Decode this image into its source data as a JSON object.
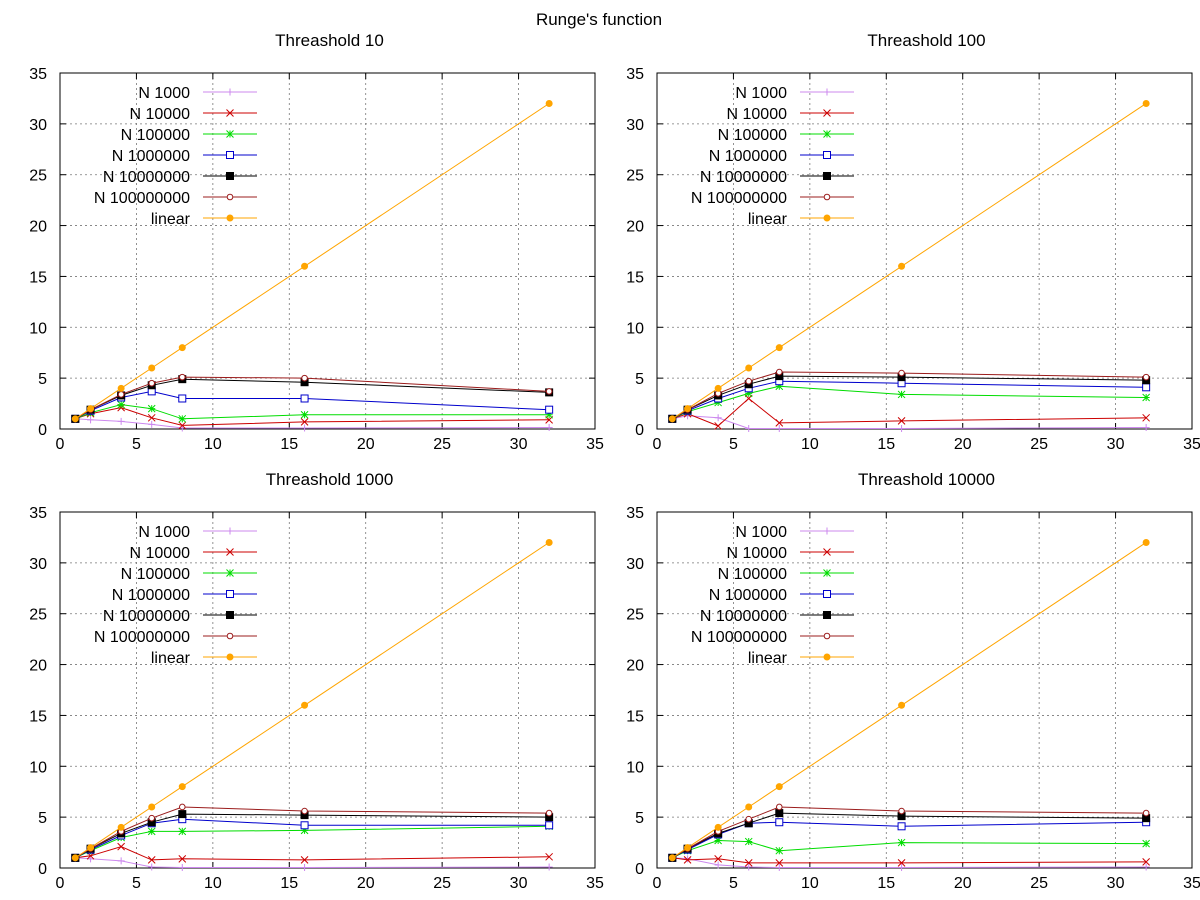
{
  "figure_title": "Runge's function",
  "chart_data": [
    {
      "type": "line",
      "title": "Threashold 10",
      "xlabel": "",
      "ylabel": "",
      "xlim": [
        0,
        35
      ],
      "ylim": [
        0,
        35
      ],
      "xticks": [
        0,
        5,
        10,
        15,
        20,
        25,
        30,
        35
      ],
      "yticks": [
        0,
        5,
        10,
        15,
        20,
        25,
        30,
        35
      ],
      "grid": true,
      "legend_position": "top-left",
      "x": [
        1,
        2,
        4,
        6,
        8,
        16,
        32
      ],
      "series": [
        {
          "name": "N 1000",
          "color": "#cc88ee",
          "marker": "plus",
          "values": [
            1,
            0.9,
            0.75,
            0.45,
            0.1,
            0.1,
            0.15
          ]
        },
        {
          "name": "N 10000",
          "color": "#cc0000",
          "marker": "cross",
          "values": [
            1,
            1.5,
            2.1,
            1.1,
            0.35,
            0.7,
            0.9
          ]
        },
        {
          "name": "N 100000",
          "color": "#00dd00",
          "marker": "star",
          "values": [
            1,
            1.6,
            2.4,
            2.0,
            1.0,
            1.4,
            1.4
          ]
        },
        {
          "name": "N 1000000",
          "color": "#0000cc",
          "marker": "open-square",
          "values": [
            1,
            1.8,
            3.1,
            3.7,
            3.0,
            3.0,
            1.9
          ]
        },
        {
          "name": "N 10000000",
          "color": "#000000",
          "marker": "filled-square",
          "values": [
            1,
            1.9,
            3.3,
            4.3,
            4.9,
            4.6,
            3.6
          ]
        },
        {
          "name": "N 100000000",
          "color": "#9b1c1c",
          "marker": "open-circle",
          "values": [
            1,
            1.9,
            3.4,
            4.5,
            5.1,
            5.0,
            3.7
          ]
        },
        {
          "name": "linear",
          "color": "#ffa500",
          "marker": "filled-circle",
          "values": [
            1,
            2,
            4,
            6,
            8,
            16,
            32
          ]
        }
      ]
    },
    {
      "type": "line",
      "title": "Threashold 100",
      "xlabel": "",
      "ylabel": "",
      "xlim": [
        0,
        35
      ],
      "ylim": [
        0,
        35
      ],
      "xticks": [
        0,
        5,
        10,
        15,
        20,
        25,
        30,
        35
      ],
      "yticks": [
        0,
        5,
        10,
        15,
        20,
        25,
        30,
        35
      ],
      "grid": true,
      "legend_position": "top-left",
      "x": [
        1,
        2,
        4,
        6,
        8,
        16,
        32
      ],
      "series": [
        {
          "name": "N 1000",
          "color": "#cc88ee",
          "marker": "plus",
          "values": [
            1,
            1.3,
            1.1,
            0.05,
            0.05,
            0.05,
            0.15
          ]
        },
        {
          "name": "N 10000",
          "color": "#cc0000",
          "marker": "cross",
          "values": [
            1,
            1.5,
            0.3,
            3.0,
            0.6,
            0.8,
            1.1
          ]
        },
        {
          "name": "N 100000",
          "color": "#00dd00",
          "marker": "star",
          "values": [
            1,
            1.7,
            2.6,
            3.5,
            4.2,
            3.4,
            3.1
          ]
        },
        {
          "name": "N 1000000",
          "color": "#0000cc",
          "marker": "open-square",
          "values": [
            1,
            1.8,
            3.0,
            4.0,
            4.7,
            4.5,
            4.1
          ]
        },
        {
          "name": "N 10000000",
          "color": "#000000",
          "marker": "filled-square",
          "values": [
            1,
            1.9,
            3.3,
            4.4,
            5.2,
            5.1,
            4.8
          ]
        },
        {
          "name": "N 100000000",
          "color": "#9b1c1c",
          "marker": "open-circle",
          "values": [
            1,
            1.9,
            3.5,
            4.7,
            5.6,
            5.5,
            5.1
          ]
        },
        {
          "name": "linear",
          "color": "#ffa500",
          "marker": "filled-circle",
          "values": [
            1,
            2,
            4,
            6,
            8,
            16,
            32
          ]
        }
      ]
    },
    {
      "type": "line",
      "title": "Threashold 1000",
      "xlabel": "",
      "ylabel": "",
      "xlim": [
        0,
        35
      ],
      "ylim": [
        0,
        35
      ],
      "xticks": [
        0,
        5,
        10,
        15,
        20,
        25,
        30,
        35
      ],
      "yticks": [
        0,
        5,
        10,
        15,
        20,
        25,
        30,
        35
      ],
      "grid": true,
      "legend_position": "top-left",
      "x": [
        1,
        2,
        4,
        6,
        8,
        16,
        32
      ],
      "series": [
        {
          "name": "N 1000",
          "color": "#cc88ee",
          "marker": "plus",
          "values": [
            1,
            0.9,
            0.7,
            0.1,
            0.05,
            0.05,
            0.1
          ]
        },
        {
          "name": "N 10000",
          "color": "#cc0000",
          "marker": "cross",
          "values": [
            1,
            1.2,
            2.1,
            0.8,
            0.9,
            0.8,
            1.1
          ]
        },
        {
          "name": "N 100000",
          "color": "#00dd00",
          "marker": "star",
          "values": [
            1,
            1.7,
            3.0,
            3.6,
            3.6,
            3.7,
            4.1
          ]
        },
        {
          "name": "N 1000000",
          "color": "#0000cc",
          "marker": "open-square",
          "values": [
            1,
            1.8,
            3.2,
            4.4,
            4.8,
            4.2,
            4.2
          ]
        },
        {
          "name": "N 10000000",
          "color": "#000000",
          "marker": "filled-square",
          "values": [
            1,
            1.9,
            3.4,
            4.5,
            5.3,
            5.2,
            5.0
          ]
        },
        {
          "name": "N 100000000",
          "color": "#9b1c1c",
          "marker": "open-circle",
          "values": [
            1,
            1.9,
            3.6,
            4.9,
            6.0,
            5.6,
            5.4
          ]
        },
        {
          "name": "linear",
          "color": "#ffa500",
          "marker": "filled-circle",
          "values": [
            1,
            2,
            4,
            6,
            8,
            16,
            32
          ]
        }
      ]
    },
    {
      "type": "line",
      "title": "Threashold 10000",
      "xlabel": "",
      "ylabel": "",
      "xlim": [
        0,
        35
      ],
      "ylim": [
        0,
        35
      ],
      "xticks": [
        0,
        5,
        10,
        15,
        20,
        25,
        30,
        35
      ],
      "yticks": [
        0,
        5,
        10,
        15,
        20,
        25,
        30,
        35
      ],
      "grid": true,
      "legend_position": "top-left",
      "x": [
        1,
        2,
        4,
        6,
        8,
        16,
        32
      ],
      "series": [
        {
          "name": "N 1000",
          "color": "#cc88ee",
          "marker": "plus",
          "values": [
            1,
            0.9,
            0.3,
            0.1,
            0.05,
            0.05,
            0.1
          ]
        },
        {
          "name": "N 10000",
          "color": "#cc0000",
          "marker": "cross",
          "values": [
            1,
            0.8,
            0.9,
            0.5,
            0.5,
            0.5,
            0.6
          ]
        },
        {
          "name": "N 100000",
          "color": "#00dd00",
          "marker": "star",
          "values": [
            1,
            1.7,
            2.7,
            2.6,
            1.7,
            2.5,
            2.4
          ]
        },
        {
          "name": "N 1000000",
          "color": "#0000cc",
          "marker": "open-square",
          "values": [
            1,
            1.8,
            3.3,
            4.4,
            4.5,
            4.1,
            4.5
          ]
        },
        {
          "name": "N 10000000",
          "color": "#000000",
          "marker": "filled-square",
          "values": [
            1,
            1.9,
            3.4,
            4.4,
            5.4,
            5.1,
            4.9
          ]
        },
        {
          "name": "N 100000000",
          "color": "#9b1c1c",
          "marker": "open-circle",
          "values": [
            1,
            1.9,
            3.6,
            4.8,
            6.0,
            5.6,
            5.4
          ]
        },
        {
          "name": "linear",
          "color": "#ffa500",
          "marker": "filled-circle",
          "values": [
            1,
            2,
            4,
            6,
            8,
            16,
            32
          ]
        }
      ]
    }
  ]
}
